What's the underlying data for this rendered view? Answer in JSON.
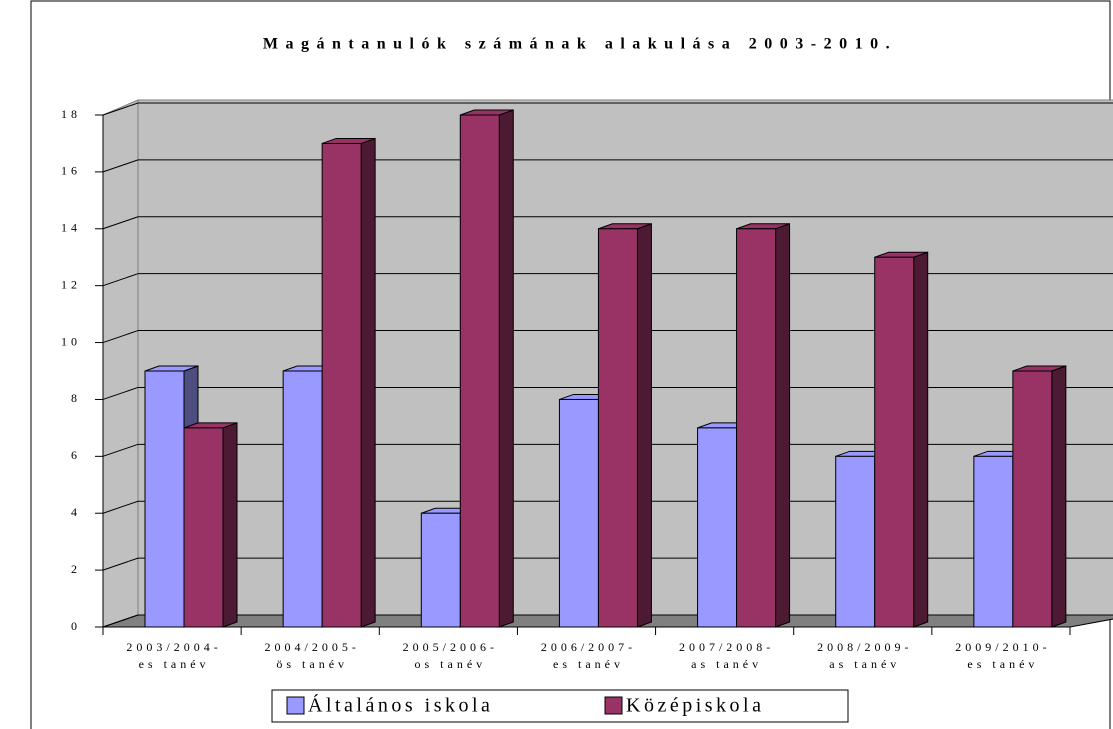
{
  "chart_data": {
    "type": "bar3d",
    "title": "Magántanulók számának alakulása 2003-2010.",
    "categories": [
      [
        "2003/2004-",
        "es tanév"
      ],
      [
        "2004/2005-",
        "ös tanév"
      ],
      [
        "2005/2006-",
        "os tanév"
      ],
      [
        "2006/2007-",
        "es tanév"
      ],
      [
        "2007/2008-",
        "as tanév"
      ],
      [
        "2008/2009-",
        "as tanév"
      ],
      [
        "2009/2010-",
        "es tanév"
      ]
    ],
    "series": [
      {
        "name": "Általános iskola",
        "color": "#9999ff",
        "values": [
          9,
          9,
          4,
          8,
          7,
          6,
          6
        ]
      },
      {
        "name": "Középiskola",
        "color": "#993366",
        "values": [
          7,
          17,
          18,
          14,
          14,
          13,
          9
        ]
      }
    ],
    "ylim": [
      0,
      18
    ],
    "yticks": [
      0,
      2,
      4,
      6,
      8,
      10,
      12,
      14,
      16,
      18
    ],
    "grid": true
  }
}
